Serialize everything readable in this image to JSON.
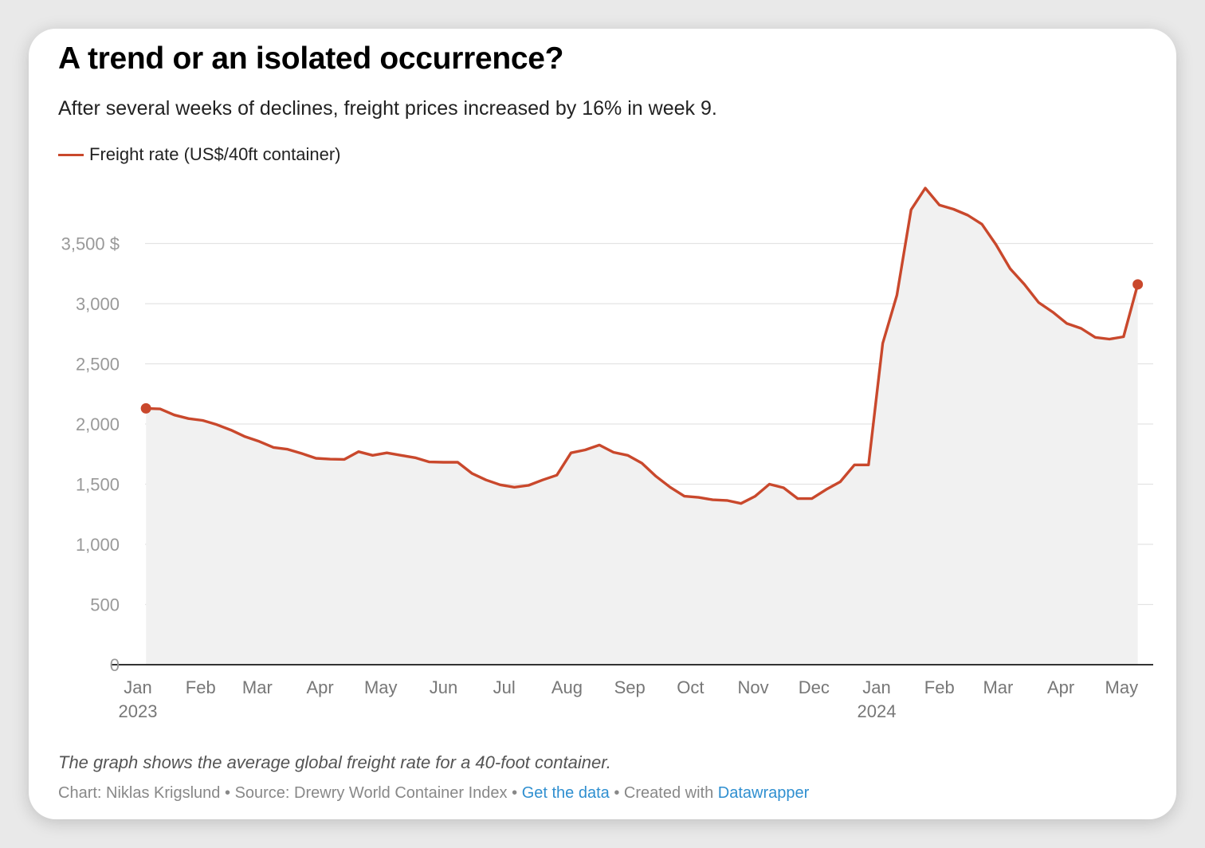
{
  "title": "A trend or an isolated occurrence?",
  "subtitle": "After several weeks of declines, freight prices increased by 16% in week 9.",
  "notes": "The graph shows the average global freight rate for a 40-foot container.",
  "byline": {
    "chart_label": "Chart: Niklas Krigslund",
    "separator": "•",
    "source_label": "Source: Drewry World Container Index",
    "get_data_link": "Get the data",
    "created_with": "Created with",
    "datawrapper_link": "Datawrapper"
  },
  "colors": {
    "line": "#c9482c",
    "area": "#f1f1f1",
    "grid": "#e3e3e3",
    "axis": "#333333",
    "tick_label": "#999999",
    "x_tick_label": "#777777",
    "link": "#2f8fd0"
  },
  "chart_data": {
    "type": "area",
    "legend": [
      {
        "name": "Freight rate (US$/40ft container)",
        "color": "#c9482c"
      }
    ],
    "legend_position": "top-left",
    "grid": true,
    "ylim": [
      0,
      4000
    ],
    "y_ticks": [
      0,
      500,
      1000,
      1500,
      2000,
      2500,
      3000,
      3500
    ],
    "y_tick_labels": [
      "0",
      "500",
      "1,000",
      "1,500",
      "2,000",
      "2,500",
      "3,000",
      "3,500 $"
    ],
    "xlim": [
      "2023-01-01",
      "2024-05-31"
    ],
    "x_ticks": [
      {
        "date": "2023-01-01",
        "label": "Jan",
        "year": "2023"
      },
      {
        "date": "2023-02-01",
        "label": "Feb"
      },
      {
        "date": "2023-03-01",
        "label": "Mar"
      },
      {
        "date": "2023-04-01",
        "label": "Apr"
      },
      {
        "date": "2023-05-01",
        "label": "May"
      },
      {
        "date": "2023-06-01",
        "label": "Jun"
      },
      {
        "date": "2023-07-01",
        "label": "Jul"
      },
      {
        "date": "2023-08-01",
        "label": "Aug"
      },
      {
        "date": "2023-09-01",
        "label": "Sep"
      },
      {
        "date": "2023-10-01",
        "label": "Oct"
      },
      {
        "date": "2023-11-01",
        "label": "Nov"
      },
      {
        "date": "2023-12-01",
        "label": "Dec"
      },
      {
        "date": "2024-01-01",
        "label": "Jan",
        "year": "2024"
      },
      {
        "date": "2024-02-01",
        "label": "Feb"
      },
      {
        "date": "2024-03-01",
        "label": "Mar"
      },
      {
        "date": "2024-04-01",
        "label": "Apr"
      },
      {
        "date": "2024-05-01",
        "label": "May"
      }
    ],
    "series": [
      {
        "name": "Freight rate (US$/40ft container)",
        "color": "#c9482c",
        "marked_points": [
          "first",
          "last"
        ],
        "points": [
          {
            "x": "2023-01-05",
            "y": 2130
          },
          {
            "x": "2023-01-12",
            "y": 2125
          },
          {
            "x": "2023-01-19",
            "y": 2075
          },
          {
            "x": "2023-01-26",
            "y": 2045
          },
          {
            "x": "2023-02-02",
            "y": 2030
          },
          {
            "x": "2023-02-09",
            "y": 1995
          },
          {
            "x": "2023-02-16",
            "y": 1950
          },
          {
            "x": "2023-02-23",
            "y": 1895
          },
          {
            "x": "2023-03-02",
            "y": 1855
          },
          {
            "x": "2023-03-09",
            "y": 1805
          },
          {
            "x": "2023-03-16",
            "y": 1790
          },
          {
            "x": "2023-03-23",
            "y": 1755
          },
          {
            "x": "2023-03-30",
            "y": 1715
          },
          {
            "x": "2023-04-06",
            "y": 1708
          },
          {
            "x": "2023-04-13",
            "y": 1706
          },
          {
            "x": "2023-04-20",
            "y": 1770
          },
          {
            "x": "2023-04-27",
            "y": 1740
          },
          {
            "x": "2023-05-04",
            "y": 1760
          },
          {
            "x": "2023-05-11",
            "y": 1740
          },
          {
            "x": "2023-05-18",
            "y": 1720
          },
          {
            "x": "2023-05-25",
            "y": 1685
          },
          {
            "x": "2023-06-01",
            "y": 1682
          },
          {
            "x": "2023-06-08",
            "y": 1682
          },
          {
            "x": "2023-06-15",
            "y": 1590
          },
          {
            "x": "2023-06-22",
            "y": 1535
          },
          {
            "x": "2023-06-29",
            "y": 1495
          },
          {
            "x": "2023-07-06",
            "y": 1475
          },
          {
            "x": "2023-07-13",
            "y": 1490
          },
          {
            "x": "2023-07-20",
            "y": 1535
          },
          {
            "x": "2023-07-27",
            "y": 1575
          },
          {
            "x": "2023-08-03",
            "y": 1760
          },
          {
            "x": "2023-08-10",
            "y": 1785
          },
          {
            "x": "2023-08-17",
            "y": 1825
          },
          {
            "x": "2023-08-24",
            "y": 1765
          },
          {
            "x": "2023-08-31",
            "y": 1740
          },
          {
            "x": "2023-09-07",
            "y": 1675
          },
          {
            "x": "2023-09-14",
            "y": 1565
          },
          {
            "x": "2023-09-21",
            "y": 1475
          },
          {
            "x": "2023-09-28",
            "y": 1400
          },
          {
            "x": "2023-10-05",
            "y": 1390
          },
          {
            "x": "2023-10-12",
            "y": 1370
          },
          {
            "x": "2023-10-19",
            "y": 1365
          },
          {
            "x": "2023-10-26",
            "y": 1340
          },
          {
            "x": "2023-11-02",
            "y": 1400
          },
          {
            "x": "2023-11-09",
            "y": 1500
          },
          {
            "x": "2023-11-16",
            "y": 1470
          },
          {
            "x": "2023-11-23",
            "y": 1380
          },
          {
            "x": "2023-11-30",
            "y": 1380
          },
          {
            "x": "2023-12-07",
            "y": 1455
          },
          {
            "x": "2023-12-14",
            "y": 1520
          },
          {
            "x": "2023-12-21",
            "y": 1660
          },
          {
            "x": "2023-12-28",
            "y": 1660
          },
          {
            "x": "2024-01-04",
            "y": 2670
          },
          {
            "x": "2024-01-11",
            "y": 3070
          },
          {
            "x": "2024-01-18",
            "y": 3780
          },
          {
            "x": "2024-01-25",
            "y": 3960
          },
          {
            "x": "2024-02-01",
            "y": 3820
          },
          {
            "x": "2024-02-08",
            "y": 3785
          },
          {
            "x": "2024-02-15",
            "y": 3735
          },
          {
            "x": "2024-02-22",
            "y": 3660
          },
          {
            "x": "2024-02-29",
            "y": 3490
          },
          {
            "x": "2024-03-07",
            "y": 3290
          },
          {
            "x": "2024-03-14",
            "y": 3160
          },
          {
            "x": "2024-03-21",
            "y": 3010
          },
          {
            "x": "2024-03-28",
            "y": 2930
          },
          {
            "x": "2024-04-04",
            "y": 2835
          },
          {
            "x": "2024-04-11",
            "y": 2795
          },
          {
            "x": "2024-04-18",
            "y": 2720
          },
          {
            "x": "2024-04-25",
            "y": 2705
          },
          {
            "x": "2024-05-02",
            "y": 2725
          },
          {
            "x": "2024-05-09",
            "y": 3160
          }
        ]
      }
    ]
  }
}
